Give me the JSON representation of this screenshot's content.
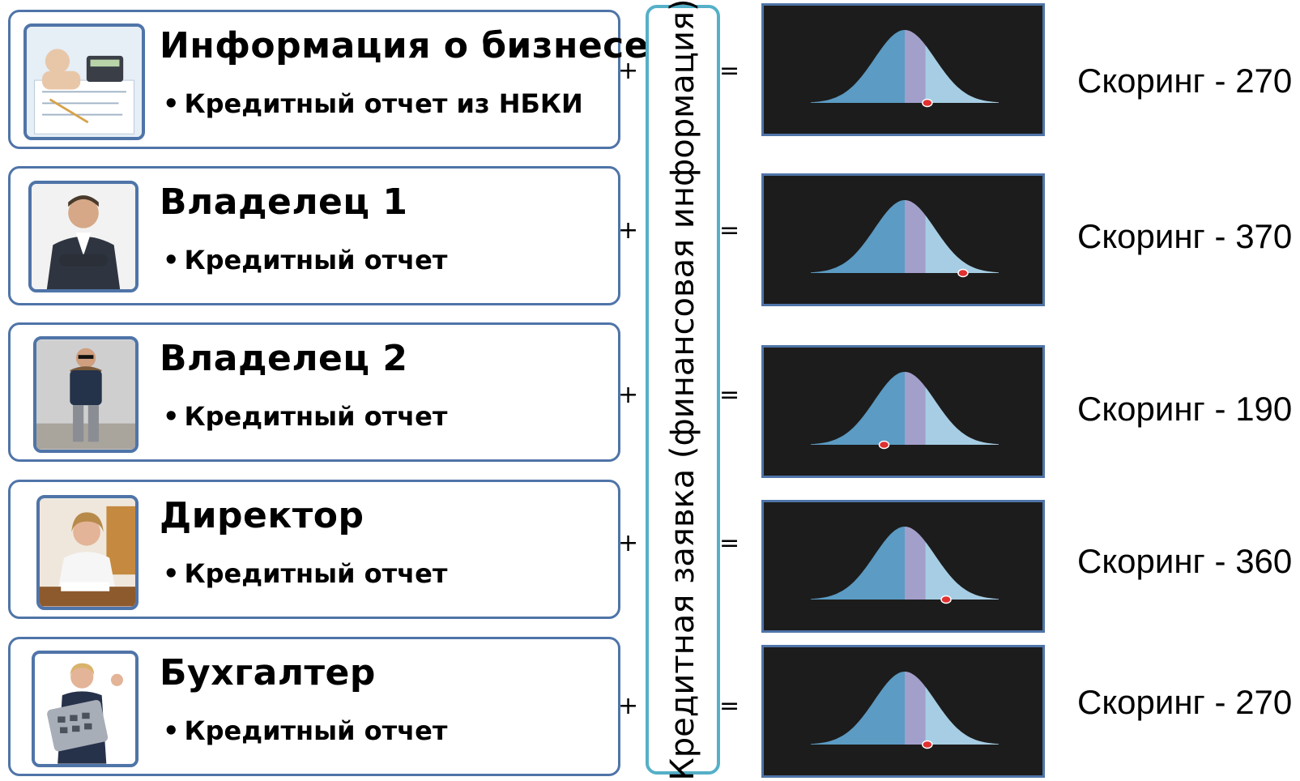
{
  "rows": [
    {
      "title": "Информация о бизнесе",
      "subtitle": "Кредитный отчет из НБКИ",
      "photo_icon": "calculator-documents-photo",
      "score": "Скоринг - 270",
      "marker": 0.62
    },
    {
      "title": "Владелец 1",
      "subtitle": "Кредитный отчет",
      "photo_icon": "man-in-suit-photo",
      "score": "Скоринг - 370",
      "marker": 0.81
    },
    {
      "title": "Владелец 2",
      "subtitle": "Кредитный отчет",
      "photo_icon": "man-in-sunglasses-photo",
      "score": "Скоринг - 190",
      "marker": 0.39
    },
    {
      "title": "Директор",
      "subtitle": "Кредитный отчет",
      "photo_icon": "woman-at-desk-photo",
      "score": "Скоринг - 360",
      "marker": 0.72
    },
    {
      "title": "Бухгалтер",
      "subtitle": "Кредитный отчет",
      "photo_icon": "woman-with-calculator-photo",
      "score": "Скоринг - 270",
      "marker": 0.62
    }
  ],
  "operators": {
    "plus": "+",
    "equals": "=",
    "bullet": "•"
  },
  "vertical_label": "Кредитная заявка (финансовая информация)",
  "colors": {
    "card_border": "#4f74a8",
    "bracket_border": "#55b0c8",
    "panel_bg": "#1c1c1c",
    "curve_left": "#5b9bc4",
    "curve_mid": "#a39fcb",
    "curve_right": "#a6cde3",
    "marker": "#e03030"
  }
}
